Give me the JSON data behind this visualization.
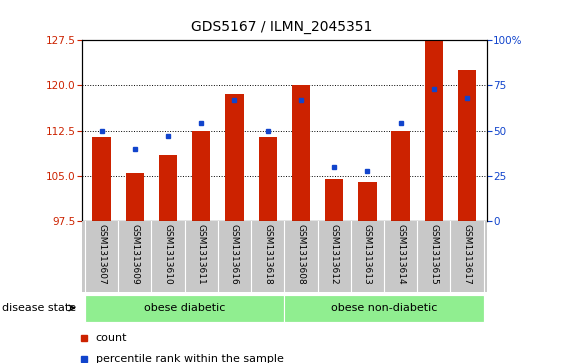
{
  "title": "GDS5167 / ILMN_2045351",
  "samples": [
    "GSM1313607",
    "GSM1313609",
    "GSM1313610",
    "GSM1313611",
    "GSM1313616",
    "GSM1313618",
    "GSM1313608",
    "GSM1313612",
    "GSM1313613",
    "GSM1313614",
    "GSM1313615",
    "GSM1313617"
  ],
  "counts": [
    111.5,
    105.5,
    108.5,
    112.5,
    118.5,
    111.5,
    120.0,
    104.5,
    104.0,
    112.5,
    127.5,
    122.5
  ],
  "percentiles": [
    50,
    40,
    47,
    54,
    67,
    50,
    67,
    30,
    28,
    54,
    73,
    68
  ],
  "y_min": 97.5,
  "y_max": 127.5,
  "y_ticks": [
    97.5,
    105.0,
    112.5,
    120.0,
    127.5
  ],
  "y_right_ticks": [
    0,
    25,
    50,
    75,
    100
  ],
  "bar_color": "#cc2200",
  "dot_color": "#1144cc",
  "group1_label": "obese diabetic",
  "group2_label": "obese non-diabetic",
  "group1_count": 6,
  "group2_count": 6,
  "disease_label": "disease state",
  "legend_count": "count",
  "legend_percentile": "percentile rank within the sample",
  "tick_bg": "#c8c8c8",
  "group_bg": "#90EE90",
  "left_axis_color": "#cc2200",
  "right_axis_color": "#1144cc",
  "grid_color": "black",
  "grid_ticks": [
    105.0,
    112.5,
    120.0
  ]
}
